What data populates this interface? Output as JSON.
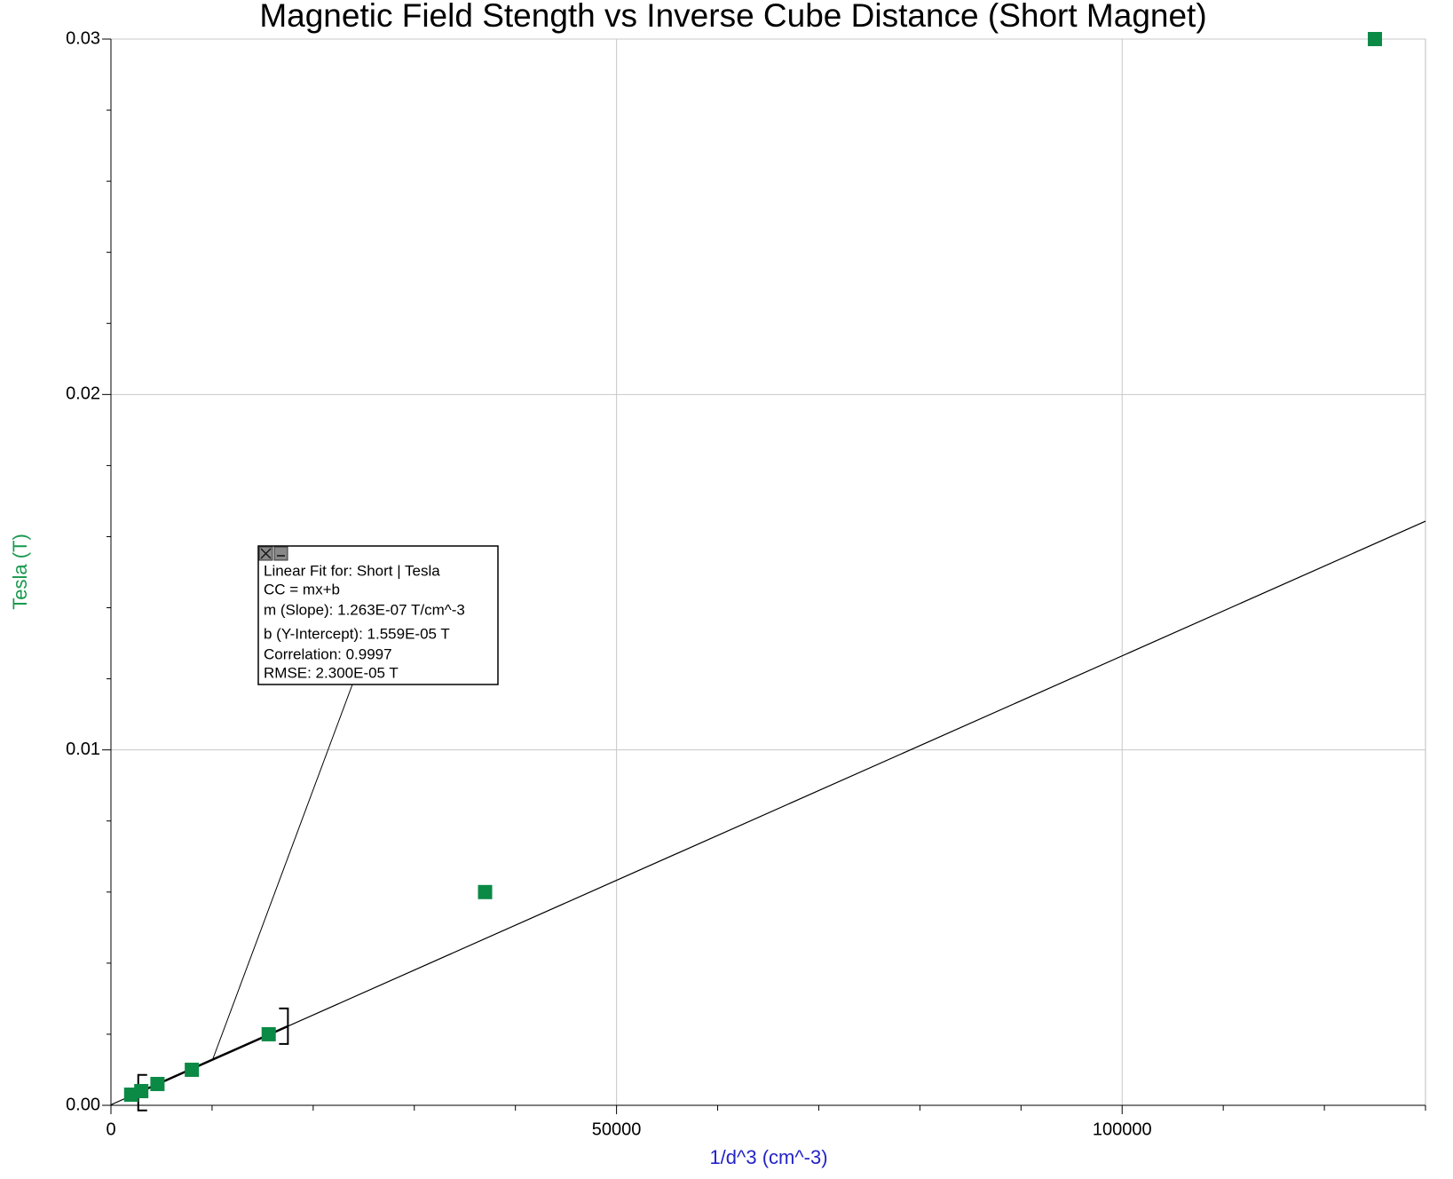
{
  "chart_data": {
    "type": "scatter",
    "title": "Magnetic Field Stength vs Inverse Cube Distance (Short Magnet)",
    "x_label": "1/d^3 (cm^-3)",
    "y_label": "Tesla (T)",
    "series": [
      {
        "name": "Short | Tesla",
        "color": "#0b8a45",
        "x": [
          2000,
          3000,
          4600,
          8000,
          15600,
          37000,
          125000
        ],
        "values": [
          0.0003,
          0.0004,
          0.0006,
          0.001,
          0.002,
          0.006,
          0.03
        ]
      }
    ],
    "xlim": [
      0,
      130000
    ],
    "xticks": [
      0,
      50000,
      100000
    ],
    "ylim": [
      0,
      0.03
    ],
    "yticks": [
      {
        "value": 0,
        "label": "0.00"
      },
      {
        "value": 0.01,
        "label": "0.01"
      },
      {
        "value": 0.02,
        "label": "0.02"
      },
      {
        "value": 0.03,
        "label": "0.03"
      }
    ],
    "grid": true,
    "fit": {
      "slope": 1.263e-07,
      "intercept": 1.559e-05,
      "range": [
        2700,
        17500
      ]
    },
    "annotation": {
      "lines": [
        "Linear Fit for: Short | Tesla",
        "CC = mx+b",
        "m (Slope): 1.263E-07 T/cm^-3",
        "b (Y-Intercept): 1.559E-05 T",
        "Correlation: 0.9997",
        "RMSE: 2.300E-05 T"
      ]
    }
  }
}
